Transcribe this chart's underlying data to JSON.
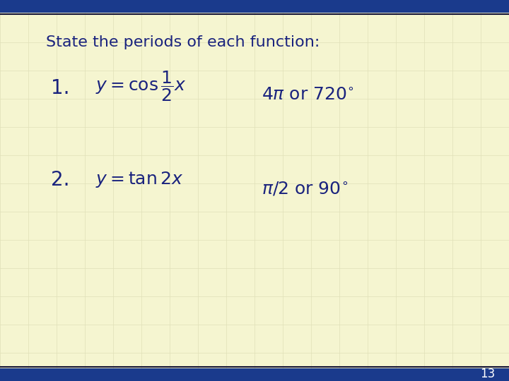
{
  "title": "State the periods of each function:",
  "title_color": "#1a237e",
  "title_fontsize": 16,
  "background_color": "#f5f5d0",
  "border_top_color": "#1a3a8c",
  "border_bottom_color": "#1a3a8c",
  "border_thickness": 18,
  "grid_color": "#e0e0b8",
  "item1_number": "1.",
  "item1_formula": "$y = \\cos\\dfrac{1}{2}x$",
  "item1_answer": "$4\\pi$ or $720^{\\circ}$",
  "item2_number": "2.",
  "item2_formula": "$y = \\tan 2x$",
  "item2_answer": "$\\pi/2$ or $90^{\\circ}$",
  "text_color": "#1a237e",
  "formula_fontsize": 18,
  "answer_fontsize": 18,
  "number_fontsize": 20,
  "page_number": "13",
  "page_number_fontsize": 12
}
